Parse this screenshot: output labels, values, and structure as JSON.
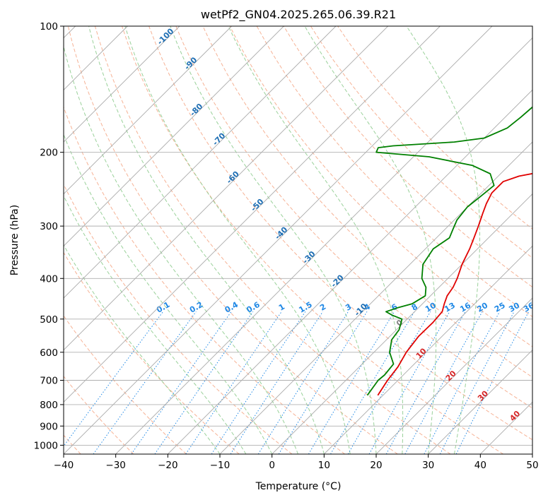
{
  "chart_data": {
    "type": "skew-t",
    "title": "wetPf2_GN04.2025.265.06.39.R21",
    "xlabel": "Temperature (°C)",
    "ylabel": "Pressure (hPa)",
    "xlim": [
      -40,
      50
    ],
    "ylim": [
      1050,
      100
    ],
    "x_ticks": [
      "−40",
      "−30",
      "−20",
      "−10",
      "0",
      "10",
      "20",
      "30",
      "40",
      "50"
    ],
    "x_tick_values": [
      -40,
      -30,
      -20,
      -10,
      0,
      10,
      20,
      30,
      40,
      50
    ],
    "p_ticks": [
      "100",
      "200",
      "300",
      "400",
      "500",
      "600",
      "700",
      "800",
      "900",
      "1000"
    ],
    "p_tick_values": [
      100,
      200,
      300,
      400,
      500,
      600,
      700,
      800,
      900,
      1000
    ],
    "colors": {
      "temperature": "#e00000",
      "dewpoint": "#008000",
      "isotherm": "#aaaaaa",
      "grid": "#b0b0b0",
      "dry_adiabat": "#f4a582",
      "moist_adiabat": "#8fcc8f",
      "mixing_ratio": "#1f88e5",
      "isotherm_label": "#1f6fb4",
      "adiabat_label": "#d62728",
      "zero_label": "#808080"
    },
    "series": [
      {
        "name": "Temperature",
        "unit": "°C",
        "points": [
          [
            760,
            9.0
          ],
          [
            700,
            8.0
          ],
          [
            650,
            7.4
          ],
          [
            600,
            6.2
          ],
          [
            550,
            5.5
          ],
          [
            510,
            5.6
          ],
          [
            480,
            5.3
          ],
          [
            460,
            4.2
          ],
          [
            440,
            3.2
          ],
          [
            420,
            2.7
          ],
          [
            400,
            1.8
          ],
          [
            370,
            0.0
          ],
          [
            340,
            -1.5
          ],
          [
            320,
            -2.8
          ],
          [
            300,
            -4.2
          ],
          [
            280,
            -5.8
          ],
          [
            265,
            -7.0
          ],
          [
            250,
            -8.0
          ],
          [
            235,
            -8.0
          ],
          [
            228,
            -6.0
          ],
          [
            222,
            -2.0
          ],
          [
            215,
            2.0
          ],
          [
            208,
            5.0
          ],
          [
            200,
            7.0
          ],
          [
            180,
            9.5
          ],
          [
            160,
            12.0
          ],
          [
            150,
            14.0
          ],
          [
            140,
            16.5
          ],
          [
            130,
            19.0
          ],
          [
            120,
            20.5
          ],
          [
            110,
            22.0
          ],
          [
            100,
            23.5
          ]
        ]
      },
      {
        "name": "Dewpoint",
        "unit": "°C",
        "points": [
          [
            760,
            7.0
          ],
          [
            700,
            6.2
          ],
          [
            680,
            6.4
          ],
          [
            640,
            6.0
          ],
          [
            600,
            3.0
          ],
          [
            560,
            1.0
          ],
          [
            530,
            0.5
          ],
          [
            500,
            -1.0
          ],
          [
            490,
            -3.5
          ],
          [
            480,
            -5.5
          ],
          [
            470,
            -4.0
          ],
          [
            460,
            -2.0
          ],
          [
            440,
            -1.0
          ],
          [
            420,
            -2.5
          ],
          [
            400,
            -5.0
          ],
          [
            370,
            -7.5
          ],
          [
            340,
            -8.5
          ],
          [
            320,
            -7.5
          ],
          [
            305,
            -8.5
          ],
          [
            290,
            -9.5
          ],
          [
            270,
            -10.0
          ],
          [
            255,
            -9.5
          ],
          [
            240,
            -9.0
          ],
          [
            225,
            -12.0
          ],
          [
            215,
            -17.0
          ],
          [
            205,
            -27.0
          ],
          [
            200,
            -38.0
          ],
          [
            195,
            -38.5
          ],
          [
            193,
            -36.0
          ],
          [
            189,
            -25.0
          ],
          [
            185,
            -20.0
          ],
          [
            175,
            -17.5
          ],
          [
            165,
            -17.0
          ],
          [
            150,
            -16.5
          ],
          [
            140,
            -14.0
          ],
          [
            125,
            -9.0
          ],
          [
            110,
            -4.5
          ],
          [
            100,
            -1.0
          ]
        ]
      }
    ],
    "isotherm_labels": [
      "-100",
      "-90",
      "-80",
      "-70",
      "-60",
      "-50",
      "-40",
      "-30",
      "-20",
      "-10",
      "0",
      "10",
      "20",
      "30",
      "40"
    ],
    "isotherm_label_values": [
      -100,
      -90,
      -80,
      -70,
      -60,
      -50,
      -40,
      -30,
      -20,
      -10,
      0,
      10,
      20,
      30,
      40
    ],
    "isotherm_label_pressures": [
      107,
      124,
      160,
      188,
      232,
      270,
      315,
      360,
      410,
      480,
      516,
      610,
      690,
      770,
      860
    ],
    "mixing_ratio_labels": [
      "0.1",
      "0.2",
      "0.4",
      "0.6",
      "1",
      "1.5",
      "2",
      "3",
      "4",
      "6",
      "8",
      "10",
      "13",
      "16",
      "20",
      "25",
      "30",
      "36"
    ],
    "mixing_ratio_values": [
      0.1,
      0.2,
      0.4,
      0.6,
      1,
      1.5,
      2,
      3,
      4,
      6,
      8,
      10,
      13,
      16,
      20,
      25,
      30,
      36
    ],
    "mixing_ratio_top_hpa": 480,
    "dry_adiabats": [
      -60,
      -50,
      -40,
      -30,
      -20,
      -10,
      0,
      10,
      20,
      30,
      40,
      50,
      60,
      70,
      80,
      90,
      100,
      110,
      120
    ],
    "moist_adiabats": [
      -10,
      -5,
      0,
      5,
      10,
      15,
      20,
      25,
      30,
      35
    ]
  }
}
